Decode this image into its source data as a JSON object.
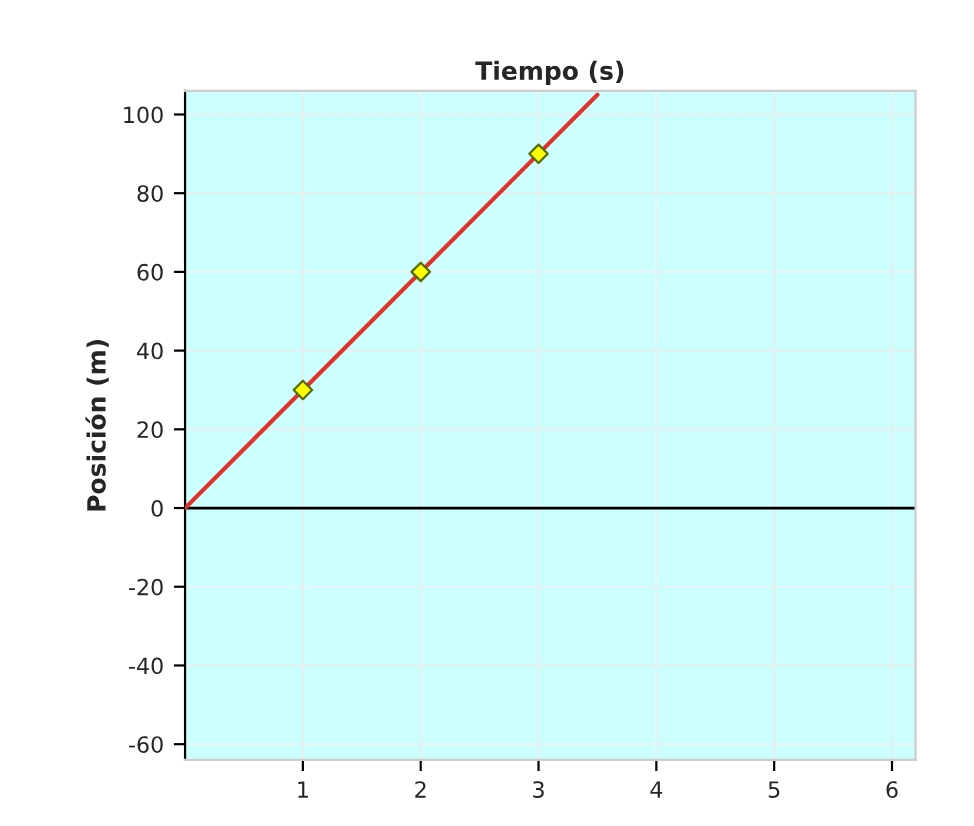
{
  "chart_data": {
    "type": "line",
    "xlabel": "Tiempo (s)",
    "ylabel": "Posición (m)",
    "xlim": [
      0,
      6.2
    ],
    "xticks": [
      1,
      2,
      3,
      4,
      5,
      6
    ],
    "ylim": [
      -64,
      106
    ],
    "yticks": [
      -60,
      -40,
      -20,
      0,
      20,
      40,
      60,
      80,
      100
    ],
    "grid": true,
    "series": [
      {
        "color": "#e0332b",
        "x": [
          0,
          3.5
        ],
        "values": [
          0,
          105
        ],
        "marker": "none"
      },
      {
        "type": "scatter",
        "color": "#ffff00",
        "x": [
          1,
          2,
          3
        ],
        "values": [
          30,
          60,
          90
        ],
        "marker": "diamond"
      }
    ],
    "ref_lines": [
      {
        "axis": "y",
        "value": 0,
        "color": "#000000"
      }
    ]
  }
}
